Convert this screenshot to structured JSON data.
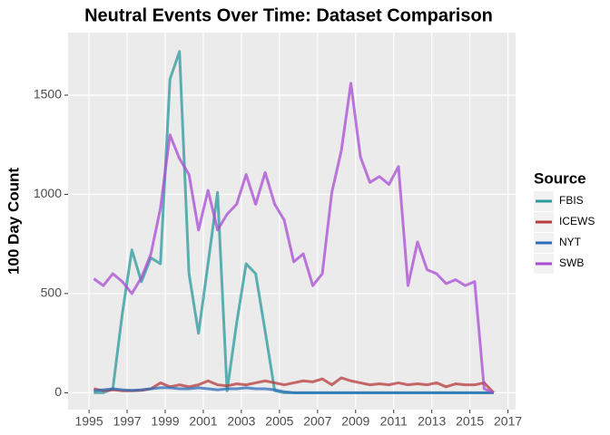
{
  "chart_data": {
    "type": "line",
    "title": "Neutral Events Over Time: Dataset Comparison",
    "y_label": "100 Day Count",
    "legend_title": "Source",
    "x": [
      1995.25,
      1995.75,
      1996.25,
      1996.75,
      1997.25,
      1997.75,
      1998.25,
      1998.75,
      1999.25,
      1999.75,
      2000.25,
      2000.75,
      2001.25,
      2001.75,
      2002.25,
      2002.75,
      2003.25,
      2003.75,
      2004.25,
      2004.75,
      2005.25,
      2005.75,
      2006.25,
      2006.75,
      2007.25,
      2007.75,
      2008.25,
      2008.75,
      2009.25,
      2009.75,
      2010.25,
      2010.75,
      2011.25,
      2011.75,
      2012.25,
      2012.75,
      2013.25,
      2013.75,
      2014.25,
      2014.75,
      2015.25,
      2015.75,
      2016.25
    ],
    "series": [
      {
        "name": "FBIS",
        "color": "#2a9a9c",
        "values": [
          0,
          0,
          20,
          400,
          720,
          560,
          680,
          650,
          1580,
          1720,
          600,
          300,
          650,
          1010,
          10,
          350,
          650,
          600,
          310,
          10,
          0,
          0,
          0,
          0,
          0,
          0,
          0,
          0,
          0,
          0,
          0,
          0,
          0,
          0,
          0,
          0,
          0,
          0,
          0,
          0,
          0,
          0,
          0
        ]
      },
      {
        "name": "ICEWS",
        "color": "#b83a3a",
        "values": [
          20,
          10,
          15,
          10,
          10,
          12,
          20,
          50,
          30,
          40,
          30,
          40,
          60,
          40,
          35,
          45,
          40,
          50,
          60,
          50,
          40,
          50,
          60,
          55,
          70,
          40,
          75,
          60,
          50,
          40,
          45,
          40,
          50,
          40,
          45,
          40,
          50,
          30,
          45,
          40,
          40,
          50,
          0
        ]
      },
      {
        "name": "NYT",
        "color": "#2b6cb8",
        "values": [
          10,
          15,
          20,
          15,
          12,
          15,
          20,
          25,
          25,
          20,
          20,
          25,
          20,
          15,
          20,
          20,
          25,
          20,
          20,
          15,
          5,
          0,
          0,
          0,
          0,
          0,
          0,
          0,
          0,
          0,
          0,
          0,
          0,
          0,
          0,
          0,
          0,
          0,
          0,
          0,
          0,
          0,
          0
        ]
      },
      {
        "name": "SWB",
        "color": "#a94bd3",
        "values": [
          575,
          540,
          600,
          560,
          500,
          580,
          700,
          930,
          1300,
          1180,
          1100,
          820,
          1020,
          820,
          900,
          950,
          1100,
          950,
          1110,
          950,
          870,
          660,
          700,
          540,
          600,
          1010,
          1220,
          1560,
          1190,
          1060,
          1090,
          1050,
          1140,
          540,
          760,
          620,
          600,
          550,
          570,
          540,
          560,
          20,
          0
        ]
      }
    ],
    "xlim": [
      1993.9,
      2017.4
    ],
    "ylim": [
      -85,
      1815
    ],
    "xticks": [
      1995,
      1997,
      1999,
      2001,
      2003,
      2005,
      2007,
      2009,
      2011,
      2013,
      2015,
      2017
    ],
    "yticks": [
      0,
      500,
      1000,
      1500
    ],
    "grid": true,
    "legend_position": "right"
  }
}
